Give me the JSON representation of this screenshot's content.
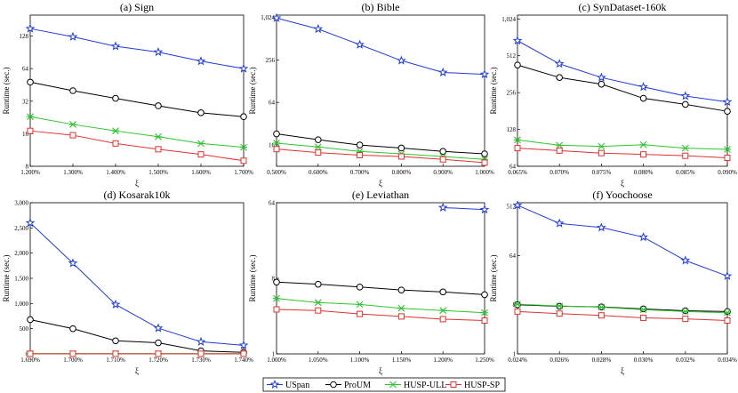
{
  "chart_data": [
    {
      "type": "line",
      "title": "(a) Sign",
      "xlabel": "ξ",
      "ylabel": "Runtime (sec.)",
      "yscale": "log2",
      "categories": [
        "1.200%",
        "1.300%",
        "1.400%",
        "1.500%",
        "1.600%",
        "1.700%"
      ],
      "yticks": [
        8,
        16,
        32,
        64,
        128
      ],
      "ylim": [
        8,
        200
      ],
      "series": [
        {
          "name": "USpan",
          "values": [
            150,
            126,
            103,
            91,
            75,
            64
          ]
        },
        {
          "name": "ProUM",
          "values": [
            48,
            40,
            34,
            29,
            25,
            23
          ]
        },
        {
          "name": "HUSP-ULL",
          "values": [
            23,
            19.5,
            17,
            15,
            13,
            12
          ]
        },
        {
          "name": "HUSP-SP",
          "values": [
            17,
            15.5,
            13,
            11.5,
            10.3,
            9
          ]
        }
      ]
    },
    {
      "type": "line",
      "title": "(b) Bible",
      "xlabel": "ξ",
      "ylabel": "Runtime (sec.)",
      "yscale": "log2",
      "categories": [
        "0.500%",
        "0.600%",
        "0.700%",
        "0.800%",
        "0.900%",
        "1.000%"
      ],
      "yticks": [
        16,
        64,
        256,
        "1,024"
      ],
      "ylim": [
        8,
        1100
      ],
      "series": [
        {
          "name": "USpan",
          "values": [
            1000,
            700,
            420,
            250,
            170,
            160
          ]
        },
        {
          "name": "ProUM",
          "values": [
            23,
            19,
            16,
            14.5,
            13,
            12
          ]
        },
        {
          "name": "HUSP-ULL",
          "values": [
            17,
            15,
            13,
            12,
            11,
            10
          ]
        },
        {
          "name": "HUSP-SP",
          "values": [
            14,
            12.5,
            11.5,
            11,
            10,
            9
          ]
        }
      ]
    },
    {
      "type": "line",
      "title": "(c) SynDataset-160k",
      "xlabel": "ξ",
      "ylabel": "Runtime (sec.)",
      "yscale": "log2",
      "categories": [
        "0.065%",
        "0.070%",
        "0.075%",
        "0.080%",
        "0.085%",
        "0.090%"
      ],
      "yticks": [
        64,
        128,
        256,
        512,
        "1,024"
      ],
      "ylim": [
        64,
        1100
      ],
      "series": [
        {
          "name": "USpan",
          "values": [
            680,
            440,
            340,
            285,
            240,
            215
          ]
        },
        {
          "name": "ProUM",
          "values": [
            430,
            340,
            300,
            230,
            205,
            180
          ]
        },
        {
          "name": "HUSP-ULL",
          "values": [
            105,
            95,
            93,
            96,
            90,
            88
          ]
        },
        {
          "name": "HUSP-SP",
          "values": [
            90,
            86,
            82,
            80,
            78,
            75
          ]
        }
      ]
    },
    {
      "type": "line",
      "title": "(d) Kosarak10k",
      "xlabel": "ξ",
      "ylabel": "Runtime (sec.)",
      "yscale": "linear",
      "categories": [
        "1.690%",
        "1.700%",
        "1.710%",
        "1.720%",
        "1.730%",
        "1.740%"
      ],
      "yticks": [
        0,
        500,
        "1,000",
        "1,500",
        "2,000",
        "2,500",
        "3,000"
      ],
      "ylim": [
        0,
        3000
      ],
      "series": [
        {
          "name": "USpan",
          "values": [
            2600,
            1800,
            980,
            510,
            240,
            170
          ]
        },
        {
          "name": "ProUM",
          "values": [
            680,
            500,
            260,
            220,
            60,
            30
          ]
        },
        {
          "name": "HUSP-ULL",
          "values": [
            5,
            5,
            5,
            5,
            5,
            5
          ]
        },
        {
          "name": "HUSP-SP",
          "values": [
            3,
            3,
            3,
            3,
            3,
            3
          ]
        }
      ]
    },
    {
      "type": "line",
      "title": "(e) Leviathan",
      "xlabel": "ξ",
      "ylabel": "Runtime (sec.)",
      "yscale": "log2",
      "categories": [
        "1.000%",
        "1.050%",
        "1.100%",
        "1.150%",
        "1.200%",
        "1.250%"
      ],
      "yticks": [
        1,
        8,
        64
      ],
      "ylim": [
        1,
        64
      ],
      "series": [
        {
          "name": "USpan",
          "values": [
            null,
            null,
            null,
            null,
            56,
            53
          ]
        },
        {
          "name": "ProUM",
          "values": [
            7.2,
            6.8,
            6.3,
            5.8,
            5.5,
            5.1
          ]
        },
        {
          "name": "HUSP-ULL",
          "values": [
            4.6,
            4.1,
            3.9,
            3.5,
            3.3,
            3.1
          ]
        },
        {
          "name": "HUSP-SP",
          "values": [
            3.4,
            3.3,
            3.0,
            2.8,
            2.6,
            2.5
          ]
        }
      ]
    },
    {
      "type": "line",
      "title": "(f) Yoochoose",
      "xlabel": "ξ",
      "ylabel": "Runtime (sec.)",
      "yscale": "log2",
      "categories": [
        "0.024%",
        "0.026%",
        "0.028%",
        "0.030%",
        "0.032%",
        "0.034%"
      ],
      "yticks": [
        1,
        8,
        64,
        512
      ],
      "ylim": [
        1,
        600
      ],
      "series": [
        {
          "name": "USpan",
          "values": [
            540,
            250,
            210,
            140,
            52,
            27
          ]
        },
        {
          "name": "ProUM",
          "values": [
            8.0,
            7.5,
            7.3,
            6.7,
            6.2,
            6.0
          ]
        },
        {
          "name": "HUSP-ULL",
          "values": [
            8.2,
            7.6,
            7.2,
            6.5,
            6.0,
            5.7
          ]
        },
        {
          "name": "HUSP-SP",
          "values": [
            6.0,
            5.5,
            5.1,
            4.6,
            4.4,
            4.1
          ]
        }
      ]
    }
  ],
  "legend": {
    "placement": "bottom-center",
    "entries": [
      {
        "name": "USpan",
        "marker": "star",
        "color": "#1f3bd6"
      },
      {
        "name": "ProUM",
        "marker": "circle",
        "color": "#000000"
      },
      {
        "name": "HUSP-ULL",
        "marker": "x",
        "color": "#2ec42e"
      },
      {
        "name": "HUSP-SP",
        "marker": "square",
        "color": "#e03030"
      }
    ]
  }
}
